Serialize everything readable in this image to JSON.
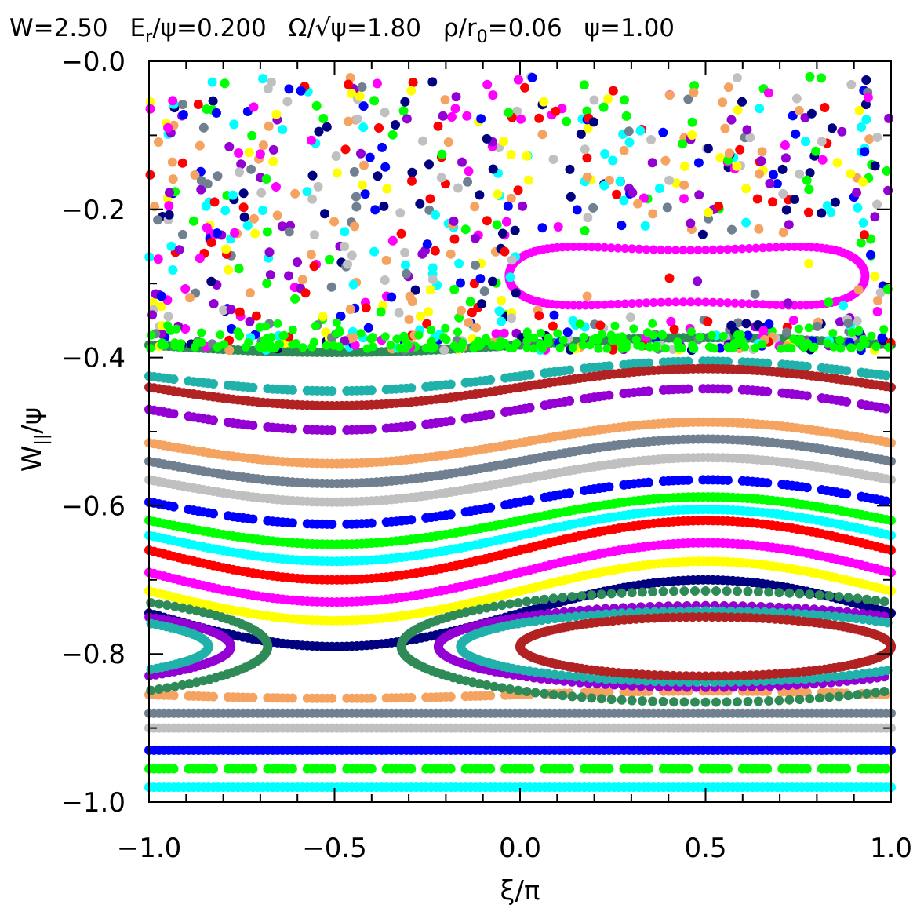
{
  "chart_data": {
    "type": "scatter",
    "title": "W=2.50  E_r/ψ=0.200  Ω/√ψ=1.80  ρ/r_0=0.06  ψ=1.00",
    "title_parts": {
      "w": "W=2.50",
      "er_main": "E",
      "er_sub": "r",
      "er_rest": "/ψ=0.200",
      "omega": "Ω/√ψ=1.80",
      "rho_main": "ρ/r",
      "rho_sub": "0",
      "rho_rest": "=0.06",
      "psi": "ψ=1.00"
    },
    "xlabel": "ξ/π",
    "ylabel_main": "W",
    "ylabel_sub": "||",
    "ylabel_rest": "/ψ",
    "xlim": [
      -1.0,
      1.0
    ],
    "ylim": [
      -1.0,
      0.0
    ],
    "x_ticks": [
      "−1.0",
      "−0.5",
      "0.0",
      "0.5",
      "1.0"
    ],
    "y_ticks": [
      "−1.0",
      "−0.8",
      "−0.6",
      "−0.4",
      "−0.2",
      "−0.0"
    ],
    "grid": false,
    "legend": "none",
    "colors": {
      "darkgreen": "#2e8b57",
      "teal": "#20b2aa",
      "brown": "#b22222",
      "purple": "#9400d3",
      "orange": "#f4a460",
      "slate": "#708090",
      "gray": "#c0c0c0",
      "blue": "#0000ff",
      "green": "#00ff00",
      "cyan": "#00ffff",
      "red": "#ff0000",
      "magenta": "#ff00ff",
      "yellow": "#ffff00",
      "navy": "#000080"
    },
    "passing_orbits": [
      {
        "color": "darkgreen",
        "mean": -0.383,
        "amp": 0.01,
        "style": "solid"
      },
      {
        "color": "teal",
        "mean": -0.425,
        "amp": 0.02,
        "style": "dashed"
      },
      {
        "color": "brown",
        "mean": -0.44,
        "amp": 0.025,
        "style": "solid"
      },
      {
        "color": "purple",
        "mean": -0.47,
        "amp": 0.028,
        "style": "dashed"
      },
      {
        "color": "orange",
        "mean": -0.515,
        "amp": 0.028,
        "style": "solid"
      },
      {
        "color": "slate",
        "mean": -0.54,
        "amp": 0.03,
        "style": "solid"
      },
      {
        "color": "gray",
        "mean": -0.565,
        "amp": 0.03,
        "style": "solid"
      },
      {
        "color": "blue",
        "mean": -0.595,
        "amp": 0.03,
        "style": "dashed"
      },
      {
        "color": "green",
        "mean": -0.62,
        "amp": 0.032,
        "style": "solid"
      },
      {
        "color": "cyan",
        "mean": -0.64,
        "amp": 0.035,
        "style": "solid"
      },
      {
        "color": "red",
        "mean": -0.66,
        "amp": 0.04,
        "style": "solid"
      },
      {
        "color": "magenta",
        "mean": -0.69,
        "amp": 0.04,
        "style": "solid"
      },
      {
        "color": "yellow",
        "mean": -0.715,
        "amp": 0.04,
        "style": "solid"
      },
      {
        "color": "navy",
        "mean": -0.745,
        "amp": 0.045,
        "style": "solid"
      },
      {
        "color": "orange",
        "mean": -0.855,
        "amp": 0.005,
        "style": "dashed"
      },
      {
        "color": "slate",
        "mean": -0.88,
        "amp": 0.0,
        "style": "solid"
      },
      {
        "color": "gray",
        "mean": -0.9,
        "amp": 0.0,
        "style": "solid"
      },
      {
        "color": "blue",
        "mean": -0.93,
        "amp": 0.0,
        "style": "solid"
      },
      {
        "color": "green",
        "mean": -0.955,
        "amp": 0.0,
        "style": "dashed"
      },
      {
        "color": "cyan",
        "mean": -0.98,
        "amp": 0.0,
        "style": "solid"
      }
    ],
    "trapped_orbits": [
      {
        "color": "darkgreen",
        "cx": 0.5,
        "cy": -0.79,
        "hw": 0.82,
        "hh": 0.075
      },
      {
        "color": "purple",
        "cx": 0.5,
        "cy": -0.79,
        "hw": 0.72,
        "hh": 0.055
      },
      {
        "color": "teal",
        "cx": 0.5,
        "cy": -0.79,
        "hw": 0.66,
        "hh": 0.048
      },
      {
        "color": "brown",
        "cx": 0.5,
        "cy": -0.79,
        "hw": 0.5,
        "hh": 0.04
      }
    ],
    "magenta_island": {
      "cx": 0.45,
      "cy": -0.29,
      "hw": 0.48,
      "hh": 0.045
    },
    "chaotic_region": {
      "y_range": [
        -0.39,
        -0.02
      ]
    }
  }
}
